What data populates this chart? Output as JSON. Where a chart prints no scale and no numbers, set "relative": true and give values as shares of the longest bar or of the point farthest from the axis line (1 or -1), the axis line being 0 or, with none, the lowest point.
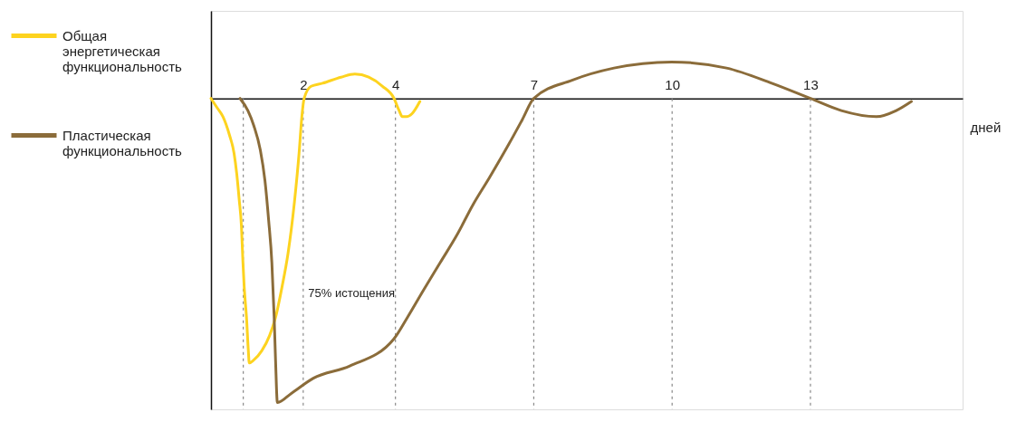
{
  "chart_data": {
    "type": "line",
    "relative": true,
    "series": [
      {
        "name": "Общая энергетическая функциональность",
        "color": "#fdd31f",
        "x": [
          0,
          0.13,
          0.26,
          0.4,
          0.5,
          0.56,
          0.61,
          0.66,
          0.69,
          0.72,
          0.77,
          0.81,
          0.83,
          0.93,
          1.1,
          1.27,
          1.4,
          1.54,
          1.67,
          1.81,
          1.91,
          1.97,
          2.02,
          2.17,
          2.42,
          2.82,
          3.12,
          3.42,
          3.72,
          3.97,
          4.08,
          4.15,
          4.24,
          4.36,
          4.53
        ],
        "values": [
          0,
          -0.03,
          -0.06,
          -0.12,
          -0.18,
          -0.25,
          -0.33,
          -0.42,
          -0.53,
          -0.62,
          -0.72,
          -0.83,
          -0.87,
          -0.86,
          -0.83,
          -0.78,
          -0.72,
          -0.62,
          -0.51,
          -0.34,
          -0.18,
          -0.06,
          0,
          0.04,
          0.05,
          0.07,
          0.08,
          0.07,
          0.04,
          0,
          -0.04,
          -0.06,
          -0.06,
          -0.05,
          -0.01
        ]
      },
      {
        "name": "Пластическая функциональность",
        "color": "#8b6c3a",
        "x": [
          0.63,
          0.8,
          0.93,
          1.07,
          1.17,
          1.25,
          1.32,
          1.37,
          1.4,
          1.44,
          1.74,
          2.22,
          3.01,
          3.97,
          4.26,
          4.61,
          4.97,
          5.33,
          5.68,
          6.04,
          6.46,
          6.75,
          7.0,
          7.83,
          8.74,
          9.99,
          11.18,
          12.16,
          13.0,
          13.67,
          14.43,
          14.86,
          15.19
        ],
        "values": [
          0,
          -0.04,
          -0.09,
          -0.17,
          -0.27,
          -0.4,
          -0.54,
          -0.72,
          -0.86,
          -1,
          -0.97,
          -0.92,
          -0.88,
          -0.79,
          -0.72,
          -0.63,
          -0.54,
          -0.45,
          -0.35,
          -0.26,
          -0.15,
          -0.07,
          0,
          0.06,
          0.1,
          0.12,
          0.1,
          0.05,
          0,
          -0.04,
          -0.06,
          -0.04,
          -0.01
        ]
      }
    ],
    "xlim": [
      0,
      16.3
    ],
    "xticks": [
      {
        "value": 0.7,
        "label": null
      },
      2,
      4,
      7,
      10,
      13
    ],
    "xlabel": "дней",
    "tick_labels": "x",
    "grid": "x",
    "legend": "left",
    "annotations": [
      "75% истощения"
    ]
  }
}
